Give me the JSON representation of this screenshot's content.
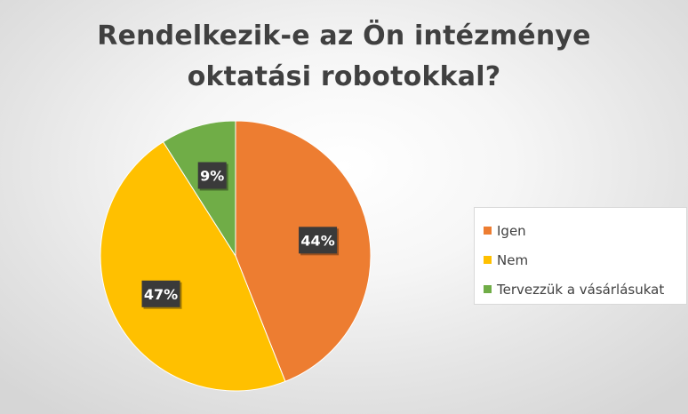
{
  "chart_data": {
    "type": "pie",
    "title_lines": [
      "Rendelkezik-e az Ön intézménye",
      "oktatási robotokkal?"
    ],
    "title": "Rendelkezik-e az Ön intézménye oktatási robotokkal?",
    "categories": [
      "Igen",
      "Nem",
      "Tervezzük a vásárlásukat"
    ],
    "values": [
      44,
      47,
      9
    ],
    "data_labels": [
      "44%",
      "47%",
      "9%"
    ],
    "colors": [
      "#ED7D31",
      "#FFC000",
      "#70AD47"
    ],
    "legend_position": "right"
  }
}
